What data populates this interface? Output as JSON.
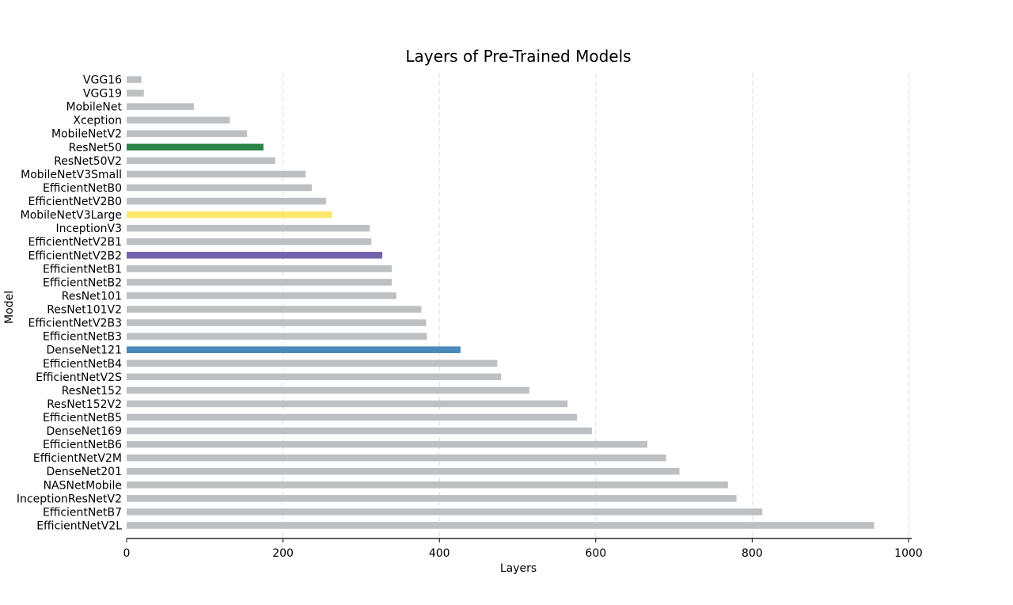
{
  "chart_data": {
    "type": "bar",
    "orientation": "horizontal",
    "title": "Layers of Pre-Trained Models",
    "xlabel": "Layers",
    "ylabel": "Model",
    "xlim": [
      0,
      1000
    ],
    "xticks": [
      0,
      200,
      400,
      600,
      800,
      1000
    ],
    "grid": "vertical dashed",
    "categories": [
      "VGG16",
      "VGG19",
      "MobileNet",
      "Xception",
      "MobileNetV2",
      "ResNet50",
      "ResNet50V2",
      "MobileNetV3Small",
      "EfficientNetB0",
      "EfficientNetV2B0",
      "MobileNetV3Large",
      "InceptionV3",
      "EfficientNetV2B1",
      "EfficientNetV2B2",
      "EfficientNetB1",
      "EfficientNetB2",
      "ResNet101",
      "ResNet101V2",
      "EfficientNetV2B3",
      "EfficientNetB3",
      "DenseNet121",
      "EfficientNetB4",
      "EfficientNetV2S",
      "ResNet152",
      "ResNet152V2",
      "EfficientNetB5",
      "DenseNet169",
      "EfficientNetB6",
      "EfficientNetV2M",
      "DenseNet201",
      "NASNetMobile",
      "InceptionResNetV2",
      "EfficientNetB7",
      "EfficientNetV2L"
    ],
    "values": [
      19,
      22,
      86,
      132,
      154,
      175,
      190,
      229,
      237,
      255,
      263,
      311,
      313,
      327,
      339,
      339,
      345,
      377,
      383,
      384,
      427,
      474,
      479,
      515,
      564,
      576,
      595,
      666,
      690,
      707,
      769,
      780,
      813,
      956
    ],
    "colors": [
      "#bdc0c3",
      "#bdc0c3",
      "#bdc0c3",
      "#bdc0c3",
      "#bdc0c3",
      "#2a8448",
      "#bdc0c3",
      "#bdc0c3",
      "#bdc0c3",
      "#bdc0c3",
      "#ffe76e",
      "#bdc0c3",
      "#bdc0c3",
      "#7363ad",
      "#bdc0c3",
      "#bdc0c3",
      "#bdc0c3",
      "#bdc0c3",
      "#bdc0c3",
      "#bdc0c3",
      "#4a89bb",
      "#bdc0c3",
      "#bdc0c3",
      "#bdc0c3",
      "#bdc0c3",
      "#bdc0c3",
      "#bdc0c3",
      "#bdc0c3",
      "#bdc0c3",
      "#bdc0c3",
      "#bdc0c3",
      "#bdc0c3",
      "#bdc0c3",
      "#bdc0c3"
    ]
  }
}
